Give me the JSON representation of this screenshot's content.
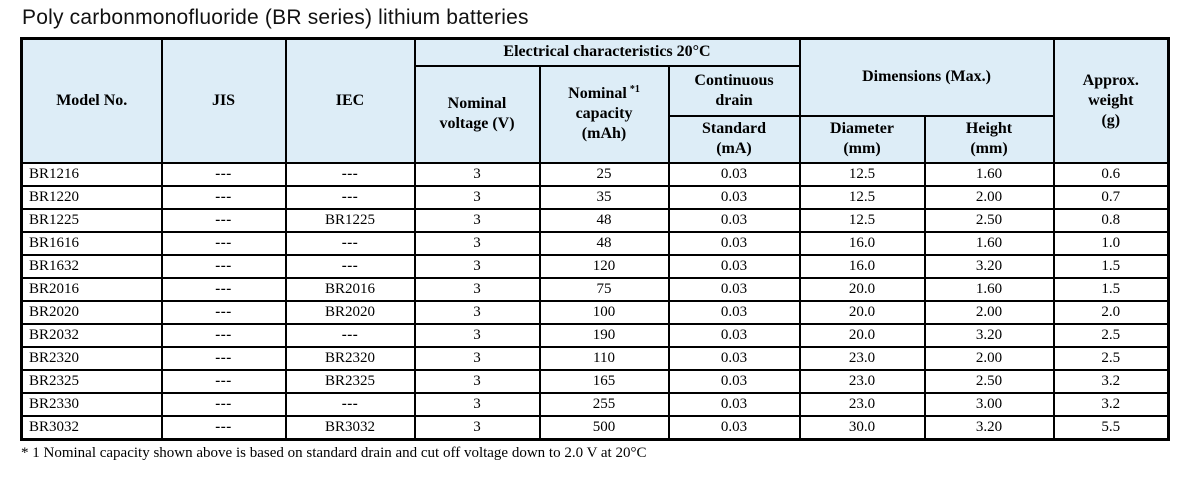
{
  "title": "Poly carbonmonofluoride (BR series) lithium batteries",
  "colors": {
    "header_bg": "#ddedf7",
    "border": "#000000",
    "row_bg": "#ffffff"
  },
  "table": {
    "header": {
      "model_no": "Model No.",
      "jis": "JIS",
      "iec": "IEC",
      "electrical_group": "Electrical characteristics 20°C",
      "nominal_voltage": "Nominal\nvoltage (V)",
      "nominal_capacity_label": "Nominal",
      "nominal_capacity_footnote_mark": "*1",
      "nominal_capacity_rest": "capacity\n(mAh)",
      "continuous_drain": "Continuous\ndrain",
      "standard": "Standard\n(mA)",
      "dimensions_group": "Dimensions (Max.)",
      "diameter": "Diameter\n(mm)",
      "height": "Height\n(mm)",
      "approx_weight": "Approx.\nweight\n(g)"
    },
    "rows": [
      {
        "model": "BR1216",
        "jis": "---",
        "iec": "---",
        "voltage": "3",
        "capacity": "25",
        "drain": "0.03",
        "diameter": "12.5",
        "height": "1.60",
        "weight": "0.6"
      },
      {
        "model": "BR1220",
        "jis": "---",
        "iec": "---",
        "voltage": "3",
        "capacity": "35",
        "drain": "0.03",
        "diameter": "12.5",
        "height": "2.00",
        "weight": "0.7"
      },
      {
        "model": "BR1225",
        "jis": "---",
        "iec": "BR1225",
        "voltage": "3",
        "capacity": "48",
        "drain": "0.03",
        "diameter": "12.5",
        "height": "2.50",
        "weight": "0.8"
      },
      {
        "model": "BR1616",
        "jis": "---",
        "iec": "---",
        "voltage": "3",
        "capacity": "48",
        "drain": "0.03",
        "diameter": "16.0",
        "height": "1.60",
        "weight": "1.0"
      },
      {
        "model": "BR1632",
        "jis": "---",
        "iec": "---",
        "voltage": "3",
        "capacity": "120",
        "drain": "0.03",
        "diameter": "16.0",
        "height": "3.20",
        "weight": "1.5"
      },
      {
        "model": "BR2016",
        "jis": "---",
        "iec": "BR2016",
        "voltage": "3",
        "capacity": "75",
        "drain": "0.03",
        "diameter": "20.0",
        "height": "1.60",
        "weight": "1.5"
      },
      {
        "model": "BR2020",
        "jis": "---",
        "iec": "BR2020",
        "voltage": "3",
        "capacity": "100",
        "drain": "0.03",
        "diameter": "20.0",
        "height": "2.00",
        "weight": "2.0"
      },
      {
        "model": "BR2032",
        "jis": "---",
        "iec": "---",
        "voltage": "3",
        "capacity": "190",
        "drain": "0.03",
        "diameter": "20.0",
        "height": "3.20",
        "weight": "2.5"
      },
      {
        "model": "BR2320",
        "jis": "---",
        "iec": "BR2320",
        "voltage": "3",
        "capacity": "110",
        "drain": "0.03",
        "diameter": "23.0",
        "height": "2.00",
        "weight": "2.5"
      },
      {
        "model": "BR2325",
        "jis": "---",
        "iec": "BR2325",
        "voltage": "3",
        "capacity": "165",
        "drain": "0.03",
        "diameter": "23.0",
        "height": "2.50",
        "weight": "3.2"
      },
      {
        "model": "BR2330",
        "jis": "---",
        "iec": "---",
        "voltage": "3",
        "capacity": "255",
        "drain": "0.03",
        "diameter": "23.0",
        "height": "3.00",
        "weight": "3.2"
      },
      {
        "model": "BR3032",
        "jis": "---",
        "iec": "BR3032",
        "voltage": "3",
        "capacity": "500",
        "drain": "0.03",
        "diameter": "30.0",
        "height": "3.20",
        "weight": "5.5"
      }
    ]
  },
  "footnote": "* 1 Nominal capacity shown above is based on standard drain and cut off voltage down to 2.0 V at 20°C"
}
